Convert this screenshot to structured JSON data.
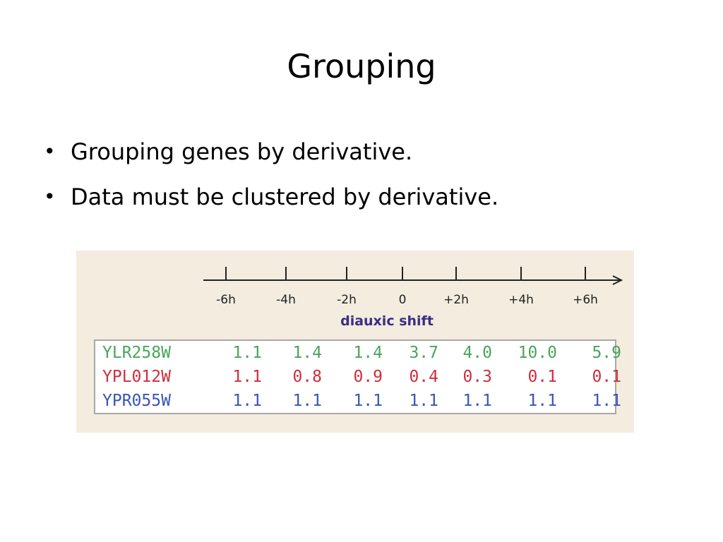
{
  "slide": {
    "title": "Grouping",
    "bullet_symbol": "•",
    "bullets": [
      "Grouping genes by derivative.",
      "Data must be clustered by derivative."
    ]
  },
  "figure": {
    "timepoints": [
      "-6h",
      "-4h",
      "-2h",
      "0",
      "+2h",
      "+4h",
      "+6h"
    ],
    "axis_caption": "diauxic shift",
    "genes": [
      {
        "name": "YLR258W",
        "color": "#4aa55a",
        "values": [
          "1.1",
          "1.4",
          "1.4",
          "3.7",
          "4.0",
          "10.0",
          "5.9"
        ]
      },
      {
        "name": "YPL012W",
        "color": "#cc2f3c",
        "values": [
          "1.1",
          "0.8",
          "0.9",
          "0.4",
          "0.3",
          "0.1",
          "0.1"
        ]
      },
      {
        "name": "YPR055W",
        "color": "#3a55b5",
        "values": [
          "1.1",
          "1.1",
          "1.1",
          "1.1",
          "1.1",
          "1.1",
          "1.1"
        ]
      }
    ]
  }
}
